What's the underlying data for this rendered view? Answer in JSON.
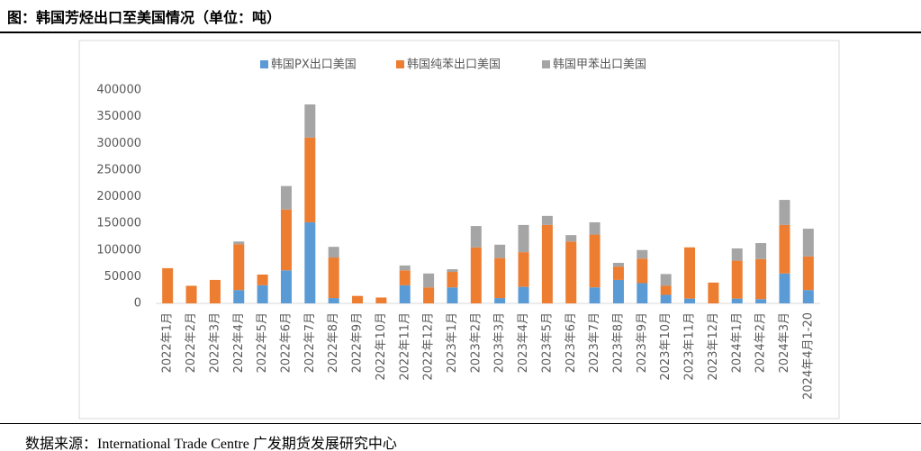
{
  "title": "图：韩国芳烃出口至美国情况（单位：吨）",
  "source": "数据来源：International Trade Centre  广发期货发展研究中心",
  "chart_data": {
    "type": "stacked_bar",
    "categories": [
      "2022年1月",
      "2022年2月",
      "2022年3月",
      "2022年4月",
      "2022年5月",
      "2022年6月",
      "2022年7月",
      "2022年8月",
      "2022年9月",
      "2022年10月",
      "2022年11月",
      "2022年12月",
      "2023年1月",
      "2023年2月",
      "2023年3月",
      "2023年4月",
      "2023年5月",
      "2023年6月",
      "2023年7月",
      "2023年8月",
      "2023年9月",
      "2023年10月",
      "2023年11月",
      "2023年12月",
      "2024年1月",
      "2024年2月",
      "2024年3月",
      "2024年4月1-20"
    ],
    "series": [
      {
        "name": "韩国PX出口美国",
        "color": "#5b9bd5",
        "values": [
          0,
          0,
          0,
          25000,
          34000,
          62000,
          152000,
          10000,
          0,
          0,
          34000,
          0,
          30000,
          0,
          10000,
          31000,
          0,
          0,
          30000,
          44000,
          38000,
          16000,
          9000,
          0,
          9000,
          8000,
          56000,
          25000
        ]
      },
      {
        "name": "韩国纯苯出口美国",
        "color": "#ed7d31",
        "values": [
          66000,
          33000,
          44000,
          86000,
          20000,
          114000,
          159000,
          76000,
          14000,
          11000,
          28000,
          30000,
          29000,
          105000,
          75000,
          65000,
          147000,
          116000,
          99000,
          25000,
          46000,
          17000,
          96000,
          39000,
          71000,
          75000,
          91000,
          63000
        ]
      },
      {
        "name": "韩国甲苯出口美国",
        "color": "#a5a5a5",
        "values": [
          0,
          0,
          0,
          5000,
          0,
          44000,
          62000,
          20000,
          0,
          0,
          9000,
          26000,
          5000,
          40000,
          25000,
          51000,
          17000,
          12000,
          23000,
          7000,
          16000,
          22000,
          0,
          0,
          23000,
          30000,
          47000,
          52000
        ]
      }
    ],
    "ylim": [
      0,
      400000
    ],
    "yticks": [
      0,
      50000,
      100000,
      150000,
      200000,
      250000,
      300000,
      350000,
      400000
    ],
    "legend": "top"
  }
}
